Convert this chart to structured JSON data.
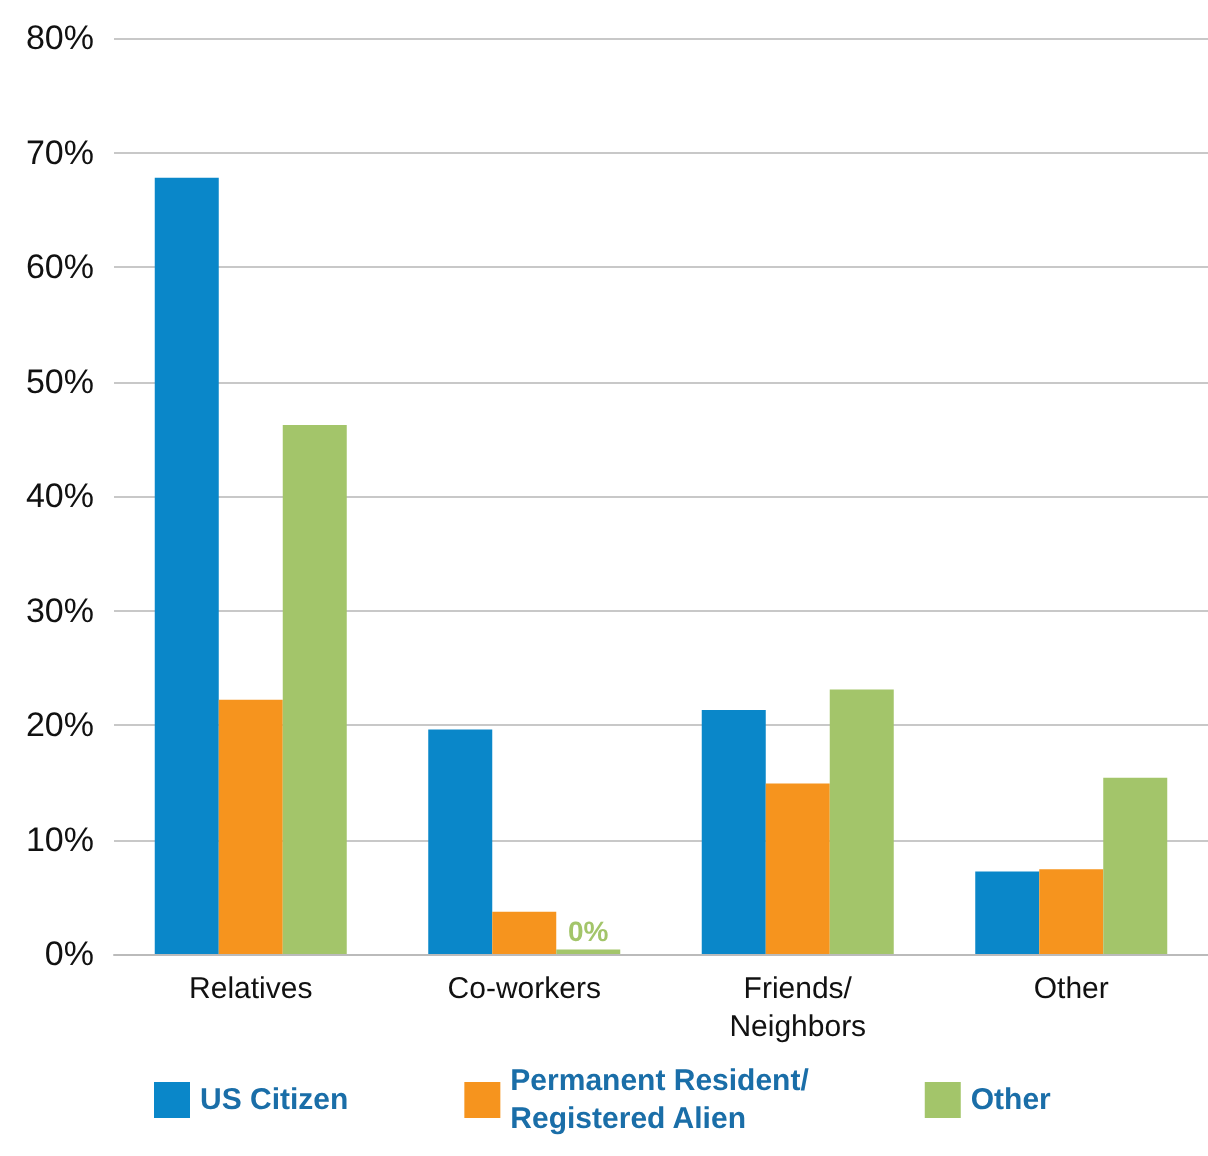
{
  "chart_data": {
    "type": "bar",
    "categories": [
      "Relatives",
      "Co-workers",
      "Friends/\nNeighbors",
      "Other"
    ],
    "series": [
      {
        "name": "US Citizen",
        "color": "#0a87c9",
        "values": [
          67.8,
          19.6,
          21.3,
          7.2
        ]
      },
      {
        "name": "Permanent Resident/\nRegistered Alien",
        "color": "#f6941e",
        "values": [
          22.2,
          3.7,
          14.9,
          7.4
        ]
      },
      {
        "name": "Other",
        "color": "#a3c56a",
        "values": [
          46.2,
          0.4,
          23.1,
          15.4
        ],
        "value_labels": [
          null,
          "0%",
          null,
          null
        ]
      }
    ],
    "ylim": [
      0,
      80
    ],
    "yticks": [
      {
        "value": 0,
        "label": "0%"
      },
      {
        "value": 10,
        "label": "10%"
      },
      {
        "value": 20,
        "label": "20%"
      },
      {
        "value": 30,
        "label": "30%"
      },
      {
        "value": 40,
        "label": "40%"
      },
      {
        "value": 50,
        "label": "50%"
      },
      {
        "value": 60,
        "label": "60%"
      },
      {
        "value": 70,
        "label": "70%"
      },
      {
        "value": 80,
        "label": "80%"
      }
    ],
    "grid": "y",
    "legend": "bottom"
  }
}
